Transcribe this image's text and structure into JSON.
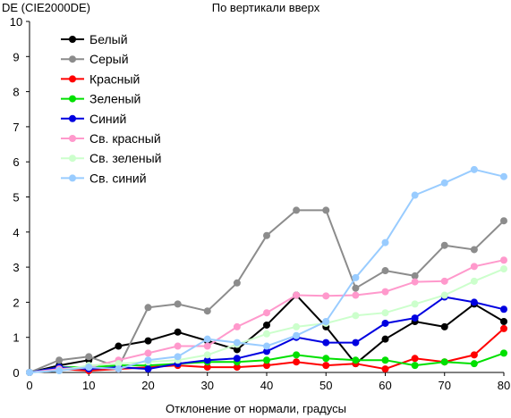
{
  "chart_data": {
    "type": "line",
    "title": "По вертикали вверх",
    "ylabel": "DE (CIE2000DE)",
    "xlabel": "Отклонение от нормали, градусы",
    "xlim": [
      0,
      80
    ],
    "ylim": [
      0,
      10
    ],
    "xticks": [
      0,
      10,
      20,
      30,
      40,
      50,
      60,
      70,
      80
    ],
    "yticks": [
      0,
      1,
      2,
      3,
      4,
      5,
      6,
      7,
      8,
      9,
      10
    ],
    "grid": false,
    "legend_position": "top-left",
    "x": [
      0,
      5,
      10,
      15,
      20,
      25,
      30,
      35,
      40,
      45,
      50,
      55,
      60,
      65,
      70,
      75,
      80
    ],
    "series": [
      {
        "name": "Белый",
        "color": "#000000",
        "values": [
          0,
          0.2,
          0.35,
          0.75,
          0.9,
          1.15,
          0.9,
          0.65,
          1.35,
          2.2,
          1.3,
          0.25,
          0.95,
          1.45,
          1.3,
          1.95,
          1.45
        ]
      },
      {
        "name": "Серый",
        "color": "#8c8c8c",
        "values": [
          0,
          0.35,
          0.45,
          0.15,
          1.85,
          1.95,
          1.75,
          2.55,
          3.9,
          4.62,
          4.62,
          2.4,
          2.9,
          2.75,
          3.62,
          3.5,
          4.32
        ]
      },
      {
        "name": "Красный",
        "color": "#ff0000",
        "values": [
          0,
          0.1,
          0.05,
          0.1,
          0.15,
          0.2,
          0.15,
          0.15,
          0.2,
          0.3,
          0.2,
          0.25,
          0.1,
          0.4,
          0.3,
          0.5,
          1.25
        ]
      },
      {
        "name": "Зеленый",
        "color": "#00e000",
        "values": [
          0,
          0.15,
          0.15,
          0.2,
          0.2,
          0.25,
          0.3,
          0.3,
          0.35,
          0.5,
          0.4,
          0.35,
          0.35,
          0.2,
          0.3,
          0.25,
          0.55
        ]
      },
      {
        "name": "Синий",
        "color": "#0000e0",
        "values": [
          0,
          0.15,
          0.1,
          0.15,
          0.1,
          0.25,
          0.35,
          0.4,
          0.6,
          1.0,
          0.85,
          0.85,
          1.4,
          1.55,
          2.15,
          2.0,
          1.8
        ]
      },
      {
        "name": "Св. красный",
        "color": "#ff99cc",
        "values": [
          0,
          0.1,
          0.15,
          0.35,
          0.55,
          0.75,
          0.75,
          1.3,
          1.7,
          2.2,
          2.18,
          2.2,
          2.3,
          2.58,
          2.6,
          3.02,
          3.2
        ]
      },
      {
        "name": "Св. зеленый",
        "color": "#ccffcc",
        "values": [
          0,
          0.05,
          0.2,
          0.25,
          0.3,
          0.35,
          0.5,
          0.8,
          1.1,
          1.3,
          1.4,
          1.62,
          1.7,
          1.95,
          2.2,
          2.6,
          2.95
        ]
      },
      {
        "name": "Св. синий",
        "color": "#99ccff",
        "values": [
          0,
          0.05,
          0.15,
          0.1,
          0.35,
          0.45,
          0.95,
          0.85,
          0.75,
          1.05,
          1.45,
          2.7,
          3.7,
          5.05,
          5.4,
          5.78,
          5.58
        ]
      }
    ]
  }
}
